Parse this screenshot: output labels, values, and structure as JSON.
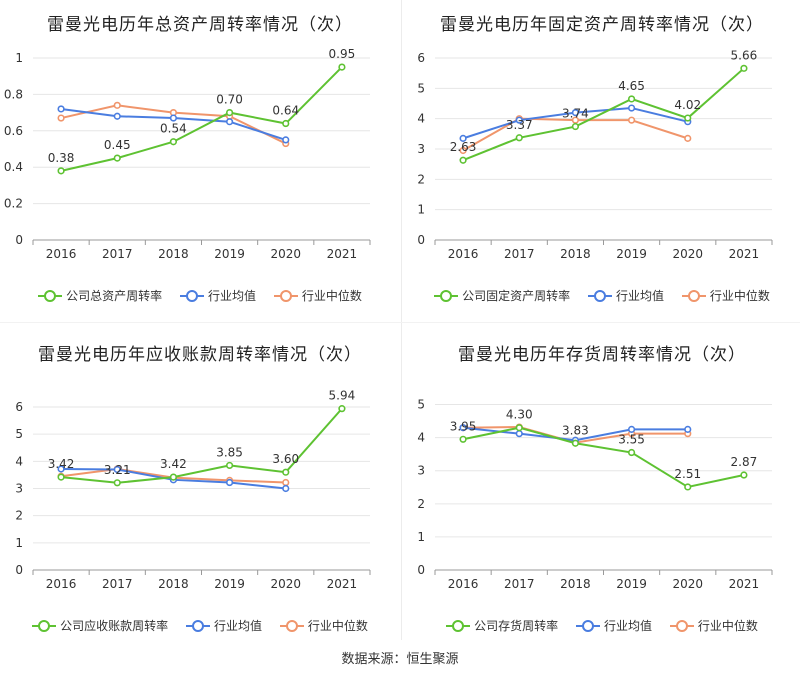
{
  "source_text": "数据来源：恒生聚源",
  "colors": {
    "company": "#5ec232",
    "avg": "#4a7de0",
    "median": "#f0956b",
    "grid": "#e6e6e6",
    "axis": "#999999"
  },
  "legend_labels": {
    "avg": "行业均值",
    "median": "行业中位数"
  },
  "chart_data": [
    {
      "type": "line",
      "title": "雷曼光电历年总资产周转率情况（次）",
      "categories": [
        "2016",
        "2017",
        "2018",
        "2019",
        "2020",
        "2021"
      ],
      "ylim": [
        0,
        1
      ],
      "yticks": [
        "0",
        "0.2",
        "0.4",
        "0.6",
        "0.8",
        "1"
      ],
      "ytick_values": [
        0,
        0.2,
        0.4,
        0.6,
        0.8,
        1
      ],
      "series": [
        {
          "name": "公司总资产周转率",
          "key": "company",
          "values": [
            0.38,
            0.45,
            0.54,
            0.7,
            0.64,
            0.95
          ],
          "labels": [
            "0.38",
            "0.45",
            "0.54",
            "0.70",
            "0.64",
            "0.95"
          ]
        },
        {
          "name": "行业均值",
          "key": "avg",
          "values": [
            0.72,
            0.68,
            0.67,
            0.65,
            0.55,
            null
          ]
        },
        {
          "name": "行业中位数",
          "key": "median",
          "values": [
            0.67,
            0.74,
            0.7,
            0.68,
            0.53,
            null
          ]
        }
      ]
    },
    {
      "type": "line",
      "title": "雷曼光电历年固定资产周转率情况（次）",
      "categories": [
        "2016",
        "2017",
        "2018",
        "2019",
        "2020",
        "2021"
      ],
      "ylim": [
        0,
        6
      ],
      "yticks": [
        "0",
        "1",
        "2",
        "3",
        "4",
        "5",
        "6"
      ],
      "ytick_values": [
        0,
        1,
        2,
        3,
        4,
        5,
        6
      ],
      "series": [
        {
          "name": "公司固定资产周转率",
          "key": "company",
          "values": [
            2.63,
            3.37,
            3.74,
            4.65,
            4.02,
            5.66
          ],
          "labels": [
            "2.63",
            "3.37",
            "3.74",
            "4.65",
            "4.02",
            "5.66"
          ]
        },
        {
          "name": "行业均值",
          "key": "avg",
          "values": [
            3.35,
            3.95,
            4.2,
            4.35,
            3.9,
            null
          ]
        },
        {
          "name": "行业中位数",
          "key": "median",
          "values": [
            2.95,
            4.0,
            3.95,
            3.95,
            3.35,
            null
          ]
        }
      ]
    },
    {
      "type": "line",
      "title": "雷曼光电历年应收账款周转率情况（次）",
      "categories": [
        "2016",
        "2017",
        "2018",
        "2019",
        "2020",
        "2021"
      ],
      "ylim": [
        0,
        6.7
      ],
      "yticks": [
        "0",
        "1",
        "2",
        "3",
        "4",
        "5",
        "6"
      ],
      "ytick_values": [
        0,
        1,
        2,
        3,
        4,
        5,
        6
      ],
      "series": [
        {
          "name": "公司应收账款周转率",
          "key": "company",
          "values": [
            3.42,
            3.21,
            3.42,
            3.85,
            3.6,
            5.94
          ],
          "labels": [
            "3.42",
            "3.21",
            "3.42",
            "3.85",
            "3.60",
            "5.94"
          ]
        },
        {
          "name": "行业均值",
          "key": "avg",
          "values": [
            3.72,
            3.7,
            3.32,
            3.22,
            3.0,
            null
          ]
        },
        {
          "name": "行业中位数",
          "key": "median",
          "values": [
            3.45,
            3.72,
            3.4,
            3.3,
            3.22,
            null
          ]
        }
      ]
    },
    {
      "type": "line",
      "title": "雷曼光电历年存货周转率情况（次）",
      "categories": [
        "2016",
        "2017",
        "2018",
        "2019",
        "2020",
        "2021"
      ],
      "ylim": [
        0,
        5.5
      ],
      "yticks": [
        "0",
        "1",
        "2",
        "3",
        "4",
        "5"
      ],
      "ytick_values": [
        0,
        1,
        2,
        3,
        4,
        5
      ],
      "series": [
        {
          "name": "公司存货周转率",
          "key": "company",
          "values": [
            3.95,
            4.3,
            3.83,
            3.55,
            2.51,
            2.87
          ],
          "labels": [
            "3.95",
            "4.30",
            "3.83",
            "3.55",
            "2.51",
            "2.87"
          ]
        },
        {
          "name": "行业均值",
          "key": "avg",
          "values": [
            4.3,
            4.12,
            3.92,
            4.25,
            4.25,
            null
          ]
        },
        {
          "name": "行业中位数",
          "key": "median",
          "values": [
            4.3,
            4.32,
            3.85,
            4.12,
            4.12,
            null
          ]
        }
      ]
    }
  ]
}
